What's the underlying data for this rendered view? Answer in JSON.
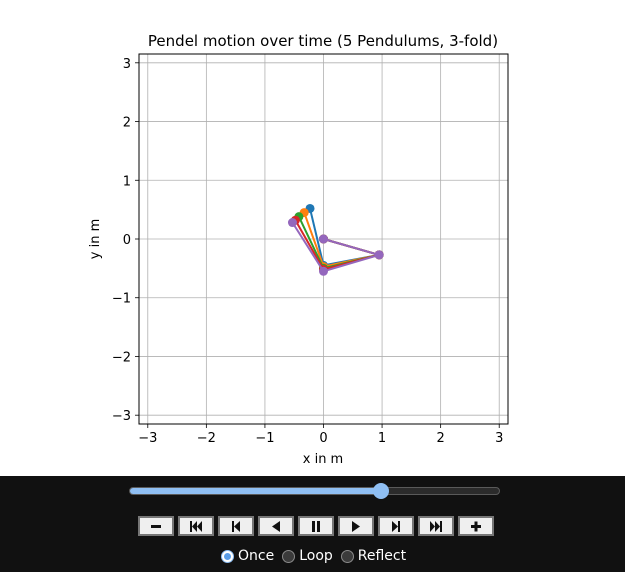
{
  "chart_data": {
    "type": "line",
    "title": "Pendel motion over time (5 Pendulums, 3-fold)",
    "xlabel": "x in m",
    "ylabel": "y in m",
    "xlim": [
      -3.15,
      3.15
    ],
    "ylim": [
      -3.15,
      3.15
    ],
    "xticks": [
      "−3",
      "−2",
      "−1",
      "0",
      "1",
      "2",
      "3"
    ],
    "yticks": [
      "−3",
      "−2",
      "−1",
      "0",
      "1",
      "2",
      "3"
    ],
    "grid": true,
    "legend": "none",
    "series": [
      {
        "color": "#1f77b4",
        "x": [
          0,
          0.95,
          0.0,
          -0.23
        ],
        "y": [
          0,
          -0.27,
          -0.45,
          0.52
        ]
      },
      {
        "color": "#ff7f0e",
        "x": [
          0,
          0.95,
          0.0,
          -0.33
        ],
        "y": [
          0,
          -0.27,
          -0.47,
          0.45
        ]
      },
      {
        "color": "#2ca02c",
        "x": [
          0,
          0.95,
          0.0,
          -0.42
        ],
        "y": [
          0,
          -0.27,
          -0.5,
          0.38
        ]
      },
      {
        "color": "#d62728",
        "x": [
          0,
          0.95,
          0.0,
          -0.48
        ],
        "y": [
          0,
          -0.27,
          -0.52,
          0.32
        ]
      },
      {
        "color": "#9467bd",
        "x": [
          0,
          0.95,
          0.0,
          -0.53
        ],
        "y": [
          0,
          -0.27,
          -0.55,
          0.28
        ]
      }
    ]
  },
  "animation": {
    "slider_progress": 0.68,
    "buttons": [
      {
        "name": "decrease-speed-button",
        "icon": "minus-icon"
      },
      {
        "name": "first-frame-button",
        "icon": "skip-to-start-icon"
      },
      {
        "name": "step-back-button",
        "icon": "step-back-icon"
      },
      {
        "name": "play-reverse-button",
        "icon": "play-reverse-icon"
      },
      {
        "name": "pause-button",
        "icon": "pause-icon"
      },
      {
        "name": "play-button",
        "icon": "play-icon"
      },
      {
        "name": "step-forward-button",
        "icon": "step-forward-icon"
      },
      {
        "name": "last-frame-button",
        "icon": "skip-to-end-icon"
      },
      {
        "name": "increase-speed-button",
        "icon": "plus-icon"
      }
    ],
    "modes": [
      {
        "label": "Once",
        "checked": true
      },
      {
        "label": "Loop",
        "checked": false
      },
      {
        "label": "Reflect",
        "checked": false
      }
    ],
    "colors": {
      "panel": "#111111",
      "accent": "#8fbff3"
    }
  }
}
